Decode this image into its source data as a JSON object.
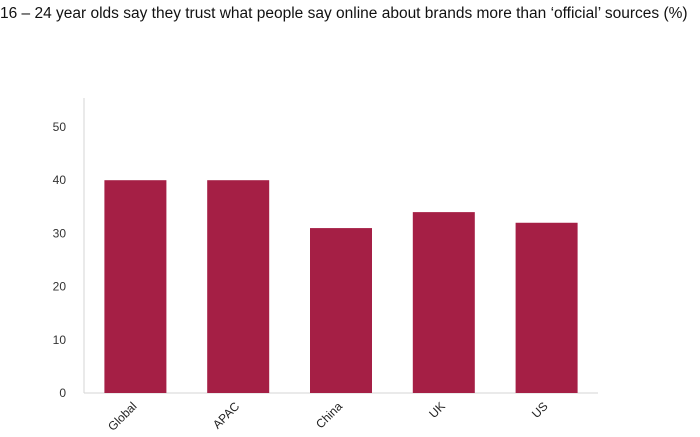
{
  "chart_data": {
    "type": "bar",
    "title": "16 – 24 year olds say they trust what people say online about brands more than ‘official’ sources (%)",
    "categories": [
      "Global",
      "APAC",
      "China",
      "UK",
      "US"
    ],
    "values": [
      40,
      40,
      31,
      34,
      32
    ],
    "ylim": [
      0,
      50
    ],
    "yticks": [
      0,
      10,
      20,
      30,
      40,
      50
    ],
    "xlabel": "",
    "ylabel": "",
    "grid": false,
    "legend": "none",
    "bar_color": "#a51f45"
  }
}
